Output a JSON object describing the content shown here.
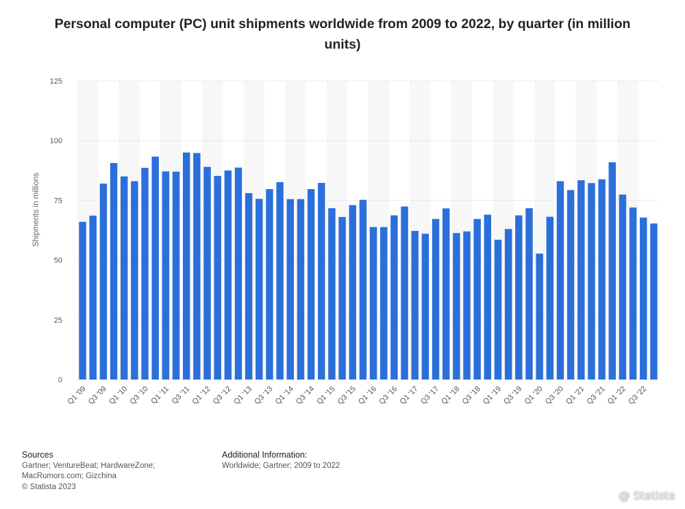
{
  "title": "Personal computer (PC) unit shipments worldwide from 2009 to 2022, by quarter (in million units)",
  "chart_data": {
    "type": "bar",
    "title": "Personal computer (PC) unit shipments worldwide from 2009 to 2022, by quarter (in million units)",
    "xlabel": "",
    "ylabel": "Shipments in millions",
    "ylim": [
      0,
      125
    ],
    "yticks": [
      0,
      25,
      50,
      75,
      100,
      125
    ],
    "grid": true,
    "bar_color": "#2b6fdb",
    "categories": [
      "Q1 '09",
      "Q2 '09",
      "Q3 '09",
      "Q4 '09",
      "Q1 '10",
      "Q2 '10",
      "Q3 '10",
      "Q4 '10",
      "Q1 '11",
      "Q2 '11",
      "Q3 '11",
      "Q4 '11",
      "Q1 '12",
      "Q2 '12",
      "Q3 '12",
      "Q4 '12",
      "Q1 '13",
      "Q2 '13",
      "Q3 '13",
      "Q4 '13",
      "Q1 '14",
      "Q2 '14",
      "Q3 '14",
      "Q4 '14",
      "Q1 '15",
      "Q2 '15",
      "Q3 '15",
      "Q4 '15",
      "Q1 '16",
      "Q2 '16",
      "Q3 '16",
      "Q4 '16",
      "Q1 '17",
      "Q2 '17",
      "Q3 '17",
      "Q4 '17",
      "Q1 '18",
      "Q2 '18",
      "Q3 '18",
      "Q4 '18",
      "Q1 '19",
      "Q2 '19",
      "Q3 '19",
      "Q4 '19",
      "Q1 '20",
      "Q2 '20",
      "Q3 '20",
      "Q4 '20",
      "Q1 '21",
      "Q2 '21",
      "Q3 '21",
      "Q4 '21",
      "Q1 '22",
      "Q2 '22",
      "Q3 '22",
      "Q4 '22"
    ],
    "values": [
      66,
      68.6,
      82,
      90.6,
      85,
      83,
      88.6,
      93.3,
      87.1,
      87,
      95,
      94.8,
      89,
      85.2,
      87.5,
      88.7,
      78,
      75.6,
      79.7,
      82.6,
      75.5,
      75.5,
      79.7,
      82.3,
      71.7,
      68,
      73,
      75.2,
      63.8,
      63.8,
      68.7,
      72.4,
      62.2,
      61,
      67.2,
      71.6,
      61.3,
      62,
      67.2,
      69,
      58.5,
      63,
      68.7,
      71.7,
      52.7,
      68.1,
      83,
      79.3,
      83.4,
      82.2,
      83.8,
      90.9,
      77.4,
      72,
      67.8,
      65.3
    ],
    "xtick_labels": [
      "Q1 '09",
      "Q3 '09",
      "Q1 '10",
      "Q3 '10",
      "Q1 '11",
      "Q3 '11",
      "Q1 '12",
      "Q3 '12",
      "Q1 '13",
      "Q3 '13",
      "Q1 '14",
      "Q3 '14",
      "Q1 '15",
      "Q3 '15",
      "Q1 '16",
      "Q3 '16",
      "Q1 '17",
      "Q3 '17",
      "Q1 '18",
      "Q3 '18",
      "Q1 '19",
      "Q3 '19",
      "Q1 '20",
      "Q3 '20",
      "Q1 '21",
      "Q3 '21",
      "Q1 '22",
      "Q3 '22"
    ]
  },
  "footer": {
    "sources_heading": "Sources",
    "sources_line1": "Gartner; VentureBeat; HardwareZone;",
    "sources_line2": "MacRumors.com; Gizchina",
    "copyright": "© Statista 2023",
    "additional_heading": "Additional Information:",
    "additional_text": "Worldwide; Gartner; 2009 to 2022"
  },
  "watermark": "@ Statista"
}
